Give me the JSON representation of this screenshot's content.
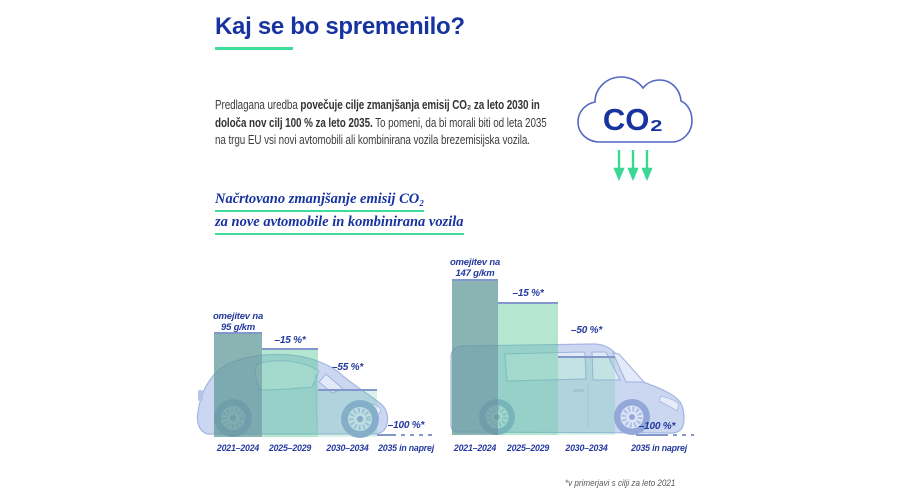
{
  "title": "Kaj se bo spremenilo?",
  "intro": {
    "lines": [
      {
        "normal": "Predlagana uredba ",
        "bold": "povečuje cilje zmanjšanja emisij CO₂ za leto 2030 in"
      },
      {
        "bold": "določa nov cilj 100 % za leto 2035.",
        "normal": " To pomeni, da bi morali biti od leta 2035"
      },
      {
        "normal": "na trgu EU vsi novi avtomobili ali kombinirana vozila brezemisijska vozila."
      }
    ]
  },
  "co2_cloud": {
    "label": "CO₂"
  },
  "subtitle": {
    "line1": "Načrtovano zmanjšanje emisij CO₂",
    "line2": "za nove avtomobile in kombinirana vozila"
  },
  "footnote": "*v primerjavi s cilji za leto 2021",
  "colors": {
    "accent_green": "#3EDD9A",
    "heading_blue": "#1733A0",
    "chart_label_blue": "#24399E",
    "bar1_teal": "rgba(99,154,154,0.75)",
    "bar2_green": "rgba(88,199,151,0.45)",
    "bar3_green_light": "rgba(88,199,151,0.22)",
    "bar_top_line_blue": "#8297CC",
    "vehicle_fill": "#CBD7F1",
    "vehicle_stroke": "#A3B6E2",
    "body_text_gray": "#3D3D3D",
    "footnote_gray": "#595959"
  },
  "chart_data": [
    {
      "type": "bar",
      "vehicle": "car",
      "limit_label_line1": "omejitev na",
      "limit_label_line2": "95 g/km",
      "categories": [
        "2021–2024",
        "2025–2029",
        "2030–2034",
        "2035 in naprej"
      ],
      "values_pct_of_limit": [
        100,
        85,
        45,
        0
      ],
      "bars": [
        {
          "period": "2021–2024",
          "value_pct": 100,
          "label": ""
        },
        {
          "period": "2025–2029",
          "value_pct": 85,
          "label": "–15 %*"
        },
        {
          "period": "2030–2034",
          "value_pct": 45,
          "label": "–55 %*"
        },
        {
          "period": "2035 in naprej",
          "value_pct": 0,
          "label": "–100 %*"
        }
      ]
    },
    {
      "type": "bar",
      "vehicle": "van",
      "limit_label_line1": "omejitev na",
      "limit_label_line2": "147 g/km",
      "categories": [
        "2021–2024",
        "2025–2029",
        "2030–2034",
        "2035 in naprej"
      ],
      "values_pct_of_limit": [
        100,
        85,
        50,
        0
      ],
      "bars": [
        {
          "period": "2021–2024",
          "value_pct": 100,
          "label": ""
        },
        {
          "period": "2025–2029",
          "value_pct": 85,
          "label": "–15 %*"
        },
        {
          "period": "2030–2034",
          "value_pct": 50,
          "label": "–50 %*"
        },
        {
          "period": "2035 in naprej",
          "value_pct": 0,
          "label": "–100 %*"
        }
      ]
    }
  ]
}
